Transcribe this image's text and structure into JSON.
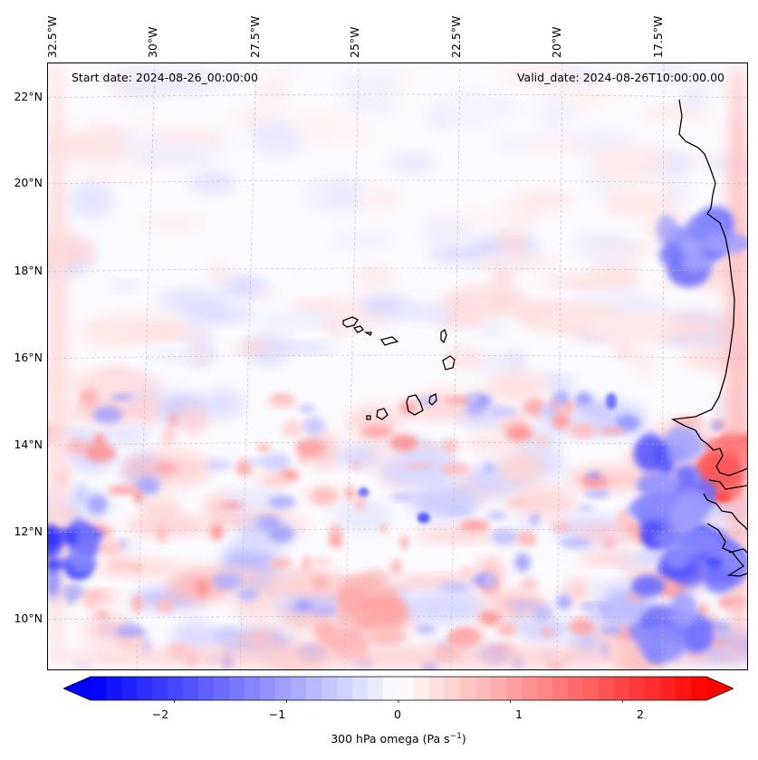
{
  "map": {
    "start_date": "Start date: 2024-08-26_00:00:00",
    "valid_date": "Valid_date: 2024-08-26T10:00:00.00",
    "lon_labels": [
      "32.5°W",
      "30°W",
      "27.5°W",
      "25°W",
      "22.5°W",
      "20°W",
      "17.5°W"
    ],
    "lat_labels": [
      "22°N",
      "20°N",
      "18°N",
      "16°N",
      "14°N",
      "12°N",
      "10°N"
    ],
    "extent": {
      "lon_min": -33,
      "lon_max": -15.5,
      "lat_min": 8.8,
      "lat_max": 22.8
    },
    "gridlines": true,
    "colors": {
      "positive": "#ff0000",
      "negative": "#0000ff",
      "neutral": "#ffffff",
      "coastline": "#000000"
    },
    "field_features": [
      {
        "kind": "negative",
        "strength": 0.55,
        "lon": -16.8,
        "lat": 18.6,
        "desc": "Northwest African coast"
      },
      {
        "kind": "negative",
        "strength": 0.7,
        "lon": -16.6,
        "lat": 11.5,
        "desc": "Guinea coast"
      },
      {
        "kind": "negative",
        "strength": 0.75,
        "lon": -32.8,
        "lat": 11.4,
        "desc": "western edge"
      },
      {
        "kind": "positive",
        "strength": 0.6,
        "lon": -15.7,
        "lat": 13.5,
        "desc": "eastern edge"
      },
      {
        "kind": "positive",
        "strength": 0.35,
        "lon": -25.0,
        "lat": 10.0,
        "desc": "southern band"
      }
    ]
  },
  "colorbar": {
    "label": "300 hPa omega (Pa s",
    "label_exponent": "−1",
    "label_close": ")",
    "vmin": -2.75,
    "vmax": 2.75,
    "ticks": [
      -2,
      -1,
      0,
      1,
      2
    ],
    "tick_labels": [
      "−2",
      "−1",
      "0",
      "1",
      "2"
    ],
    "cmap": "bwr",
    "extend": "both"
  }
}
